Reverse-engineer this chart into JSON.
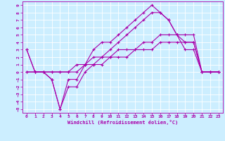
{
  "xlabel": "Windchill (Refroidissement éolien,°C)",
  "bg_color": "#cceeff",
  "line_color": "#aa00aa",
  "grid_color": "#ffffff",
  "xlim": [
    -0.5,
    23.5
  ],
  "ylim": [
    -5.5,
    9.5
  ],
  "xticks": [
    0,
    1,
    2,
    3,
    4,
    5,
    6,
    7,
    8,
    9,
    10,
    11,
    12,
    13,
    14,
    15,
    16,
    17,
    18,
    19,
    20,
    21,
    22,
    23
  ],
  "yticks": [
    -5,
    -4,
    -3,
    -2,
    -1,
    0,
    1,
    2,
    3,
    4,
    5,
    6,
    7,
    8,
    9
  ],
  "line1_x": [
    0,
    1,
    2,
    3,
    4,
    5,
    6,
    7,
    8,
    9,
    10,
    11,
    12,
    13,
    14,
    15,
    16,
    17,
    18,
    19,
    20,
    21,
    22,
    23
  ],
  "line1_y": [
    3,
    0,
    0,
    -1,
    -5,
    -1,
    -1,
    1,
    3,
    4,
    4,
    5,
    6,
    7,
    8,
    9,
    8,
    7,
    5,
    4,
    4,
    0,
    0,
    0
  ],
  "line2_x": [
    0,
    1,
    2,
    3,
    4,
    5,
    6,
    7,
    8,
    9,
    10,
    11,
    12,
    13,
    14,
    15,
    16,
    17,
    18,
    19,
    20,
    21,
    22,
    23
  ],
  "line2_y": [
    3,
    0,
    0,
    -1,
    -5,
    -2,
    -2,
    0,
    1,
    2,
    3,
    4,
    5,
    6,
    7,
    8,
    8,
    7,
    5,
    3,
    3,
    0,
    0,
    0
  ],
  "line3_x": [
    0,
    1,
    2,
    3,
    4,
    5,
    6,
    7,
    8,
    9,
    10,
    11,
    12,
    13,
    14,
    15,
    16,
    17,
    18,
    19,
    20,
    21,
    22,
    23
  ],
  "line3_y": [
    0,
    0,
    0,
    0,
    0,
    0,
    1,
    1,
    2,
    2,
    2,
    3,
    3,
    3,
    4,
    4,
    5,
    5,
    5,
    5,
    5,
    0,
    0,
    0
  ],
  "line4_x": [
    0,
    1,
    2,
    3,
    4,
    5,
    6,
    7,
    8,
    9,
    10,
    11,
    12,
    13,
    14,
    15,
    16,
    17,
    18,
    19,
    20,
    21,
    22,
    23
  ],
  "line4_y": [
    0,
    0,
    0,
    0,
    0,
    0,
    0,
    1,
    1,
    1,
    2,
    2,
    2,
    3,
    3,
    3,
    4,
    4,
    4,
    4,
    4,
    0,
    0,
    0
  ]
}
